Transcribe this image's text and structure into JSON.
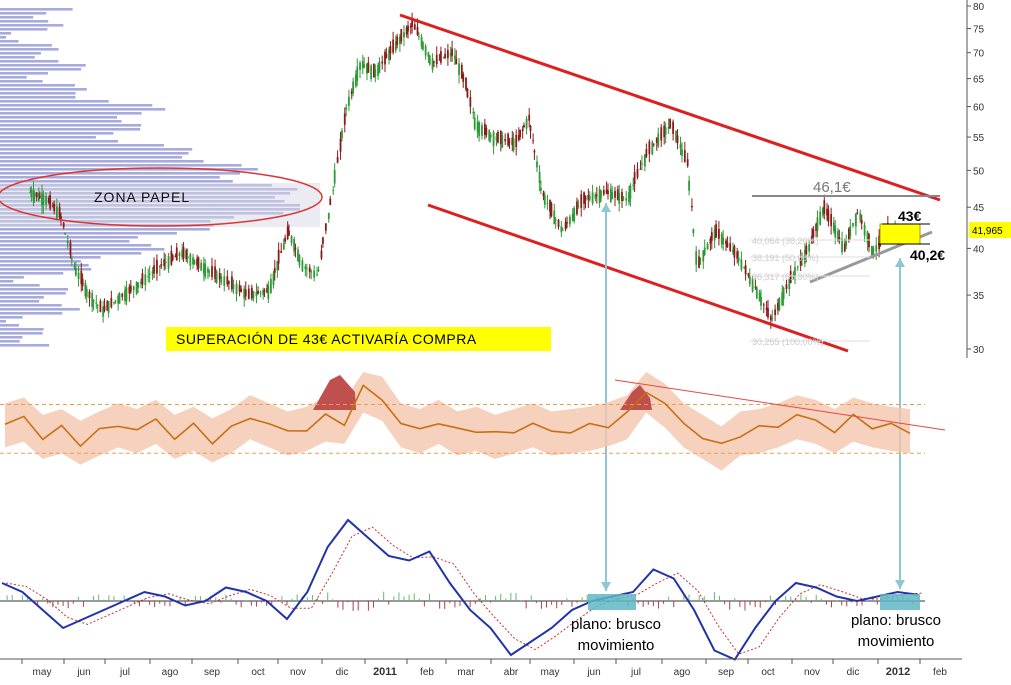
{
  "chart_data": [
    {
      "type": "candlestick",
      "title": "",
      "xlabel": "",
      "ylabel": "",
      "y_axis_side": "right",
      "y_scale": "log",
      "y_ticks": [
        80,
        75,
        70,
        65,
        60,
        55,
        50,
        45,
        40,
        35,
        30
      ],
      "ylim": [
        29,
        81
      ],
      "last_price_label": "41,965",
      "x_ticks": [
        "may",
        "jun",
        "jul",
        "ago",
        "sep",
        "oct",
        "nov",
        "dic",
        "2011",
        "feb",
        "mar",
        "abr",
        "may",
        "jun",
        "jul",
        "ago",
        "sep",
        "oct",
        "nov",
        "dic",
        "2012",
        "feb"
      ],
      "price_path": [
        [
          "2010-04-20",
          47.0
        ],
        [
          "2010-05-05",
          46.0
        ],
        [
          "2010-05-15",
          44.0
        ],
        [
          "2010-05-25",
          38.0
        ],
        [
          "2010-06-05",
          35.0
        ],
        [
          "2010-06-15",
          33.5
        ],
        [
          "2010-06-25",
          34.5
        ],
        [
          "2010-07-10",
          36.0
        ],
        [
          "2010-07-25",
          38.0
        ],
        [
          "2010-08-10",
          39.5
        ],
        [
          "2010-08-25",
          38.0
        ],
        [
          "2010-09-10",
          36.5
        ],
        [
          "2010-09-25",
          35.0
        ],
        [
          "2010-10-10",
          35.5
        ],
        [
          "2010-10-25",
          42.0
        ],
        [
          "2010-11-05",
          38.0
        ],
        [
          "2010-11-15",
          37.0
        ],
        [
          "2010-11-25",
          47.0
        ],
        [
          "2010-12-05",
          60.0
        ],
        [
          "2010-12-15",
          68.0
        ],
        [
          "2010-12-25",
          66.0
        ],
        [
          "2011-01-10",
          72.0
        ],
        [
          "2011-01-22",
          76.0
        ],
        [
          "2011-02-05",
          68.0
        ],
        [
          "2011-02-20",
          70.0
        ],
        [
          "2011-03-01",
          64.0
        ],
        [
          "2011-03-08",
          57.0
        ],
        [
          "2011-03-20",
          55.0
        ],
        [
          "2011-04-05",
          54.0
        ],
        [
          "2011-04-15",
          58.0
        ],
        [
          "2011-04-25",
          47.0
        ],
        [
          "2011-05-10",
          42.0
        ],
        [
          "2011-05-25",
          46.0
        ],
        [
          "2011-06-10",
          47.0
        ],
        [
          "2011-06-25",
          46.0
        ],
        [
          "2011-07-10",
          53.0
        ],
        [
          "2011-07-25",
          57.0
        ],
        [
          "2011-08-05",
          51.0
        ],
        [
          "2011-08-12",
          38.0
        ],
        [
          "2011-08-25",
          42.0
        ],
        [
          "2011-09-10",
          39.0
        ],
        [
          "2011-09-25",
          35.0
        ],
        [
          "2011-10-04",
          32.5
        ],
        [
          "2011-10-15",
          36.0
        ],
        [
          "2011-10-30",
          40.0
        ],
        [
          "2011-11-10",
          45.0
        ],
        [
          "2011-11-25",
          40.0
        ],
        [
          "2011-12-05",
          44.5
        ],
        [
          "2011-12-15",
          39.5
        ],
        [
          "2011-12-25",
          42.0
        ],
        [
          "2012-01-05",
          42.0
        ]
      ],
      "annotations": {
        "zone_label": "ZONA PAPEL",
        "resistance_label": "46,1€",
        "breakout_label": "43€",
        "support_label": "40,2€",
        "callout": "SUPERACIÓN DE 43€ ACTIVARÍA COMPRA",
        "fib_levels": [
          "40,064 (38,20%)",
          "38,191 (50,00%)",
          "36,317 (61,80%)",
          "30,255 (100,00%)"
        ],
        "channel_color": "#dd1f1f",
        "callout_bg": "#ffff00",
        "price_color": "#2e8b35"
      }
    },
    {
      "type": "line",
      "title": "",
      "xlabel": "",
      "ylabel": "",
      "series": [
        {
          "values": [
            0.55,
            0.6,
            0.45,
            0.5,
            0.4,
            0.48,
            0.55,
            0.5,
            0.58,
            0.45,
            0.52,
            0.42,
            0.5,
            0.62,
            0.55,
            0.48,
            0.52,
            0.6,
            0.58,
            0.85,
            0.78,
            0.55,
            0.5,
            0.58,
            0.48,
            0.52,
            0.45,
            0.5,
            0.55,
            0.48,
            0.5,
            0.52,
            0.56,
            0.62,
            0.85,
            0.72,
            0.55,
            0.45,
            0.35,
            0.48,
            0.5,
            0.55,
            0.62,
            0.58,
            0.5,
            0.6,
            0.55,
            0.52,
            0.5
          ]
        }
      ],
      "bands_dashed": [
        0.72,
        0.3
      ],
      "line_color": "#c86f12",
      "band_color": "#f4c6ac",
      "overbought_fill": "#c0504d"
    },
    {
      "type": "macd",
      "title": "",
      "xlabel": "",
      "ylabel": "",
      "series": [
        {
          "values": [
            0.2,
            0.1,
            -0.1,
            -0.3,
            -0.2,
            -0.1,
            0.0,
            0.1,
            0.05,
            -0.05,
            0.0,
            0.15,
            0.1,
            0.0,
            -0.2,
            0.1,
            0.6,
            0.9,
            0.7,
            0.5,
            0.45,
            0.55,
            0.2,
            -0.1,
            -0.3,
            -0.6,
            -0.45,
            -0.3,
            -0.1,
            0.0,
            0.05,
            0.1,
            0.35,
            0.25,
            -0.1,
            -0.55,
            -0.65,
            -0.3,
            0.0,
            0.2,
            0.15,
            0.05,
            0.0,
            0.05,
            0.1,
            0.07
          ]
        }
      ],
      "line_color": "#2233aa",
      "signal_color": "#cc3333",
      "histogram_pos": "#66bb66",
      "histogram_neg": "#aa4444",
      "annotations": [
        "plano: brusco\nmovimiento",
        "plano: brusco\nmovimiento"
      ],
      "highlight_color": "#5fb7c4"
    }
  ]
}
